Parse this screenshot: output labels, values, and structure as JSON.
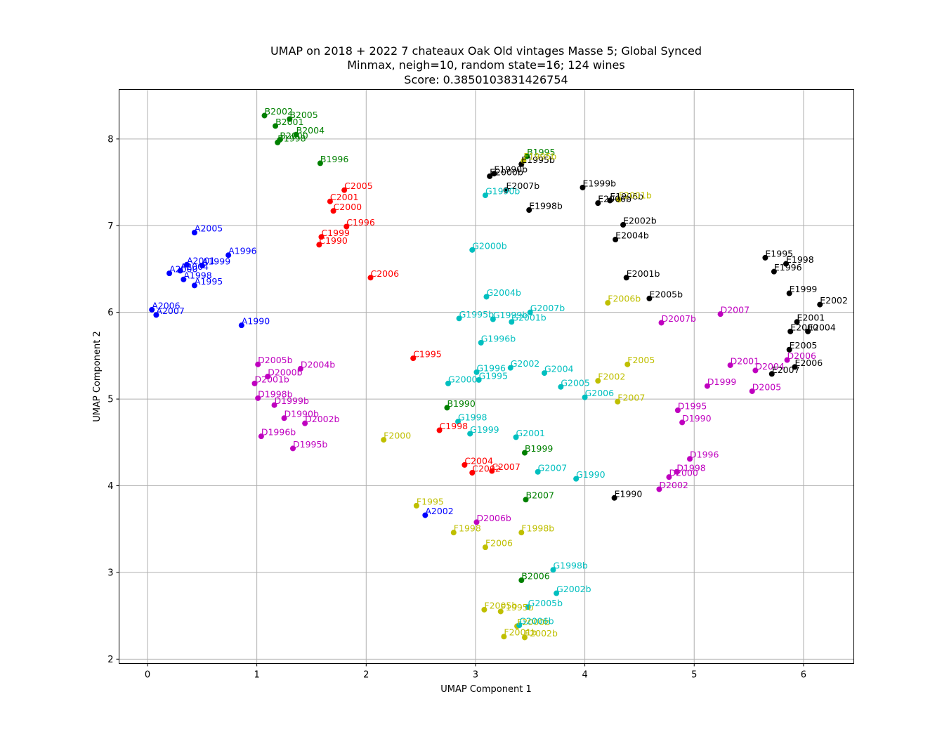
{
  "chart_data": {
    "type": "scatter",
    "title": [
      "UMAP on 2018 + 2022 7 chateaux Oak Old vintages Masse 5; Global Synced",
      "Minmax, neigh=10, random state=16; 124 wines",
      "Score: 0.3850103831426754"
    ],
    "xlabel": "UMAP Component 1",
    "ylabel": "UMAP Component 2",
    "xlim": [
      -0.26,
      6.46
    ],
    "ylim": [
      1.95,
      8.57
    ],
    "xticks": [
      "0",
      "1",
      "2",
      "3",
      "4",
      "5",
      "6"
    ],
    "yticks": [
      "2",
      "3",
      "4",
      "5",
      "6",
      "7",
      "8"
    ],
    "grid": true,
    "colors": {
      "A": "#0000ff",
      "B": "#008000",
      "C": "#ff0000",
      "D": "#bf00bf",
      "E": "#000000",
      "F": "#bfbf00",
      "G": "#00bfbf"
    },
    "points": [
      {
        "label": "A2005",
        "x": 0.43,
        "y": 6.92,
        "g": "A"
      },
      {
        "label": "A1996",
        "x": 0.74,
        "y": 6.66,
        "g": "A"
      },
      {
        "label": "A2001",
        "x": 0.36,
        "y": 6.55,
        "g": "A"
      },
      {
        "label": "A1999",
        "x": 0.5,
        "y": 6.54,
        "g": "A"
      },
      {
        "label": "A2004",
        "x": 0.3,
        "y": 6.48,
        "g": "A"
      },
      {
        "label": "A2000",
        "x": 0.2,
        "y": 6.45,
        "g": "A"
      },
      {
        "label": "A1998",
        "x": 0.33,
        "y": 6.38,
        "g": "A"
      },
      {
        "label": "A1995",
        "x": 0.43,
        "y": 6.31,
        "g": "A"
      },
      {
        "label": "A2006",
        "x": 0.04,
        "y": 6.03,
        "g": "A"
      },
      {
        "label": "A2007",
        "x": 0.08,
        "y": 5.97,
        "g": "A"
      },
      {
        "label": "A1990",
        "x": 0.86,
        "y": 5.85,
        "g": "A"
      },
      {
        "label": "A2002",
        "x": 2.54,
        "y": 3.66,
        "g": "A"
      },
      {
        "label": "B2002",
        "x": 1.07,
        "y": 8.27,
        "g": "B"
      },
      {
        "label": "B2005",
        "x": 1.3,
        "y": 8.23,
        "g": "B"
      },
      {
        "label": "B2001",
        "x": 1.17,
        "y": 8.15,
        "g": "B"
      },
      {
        "label": "B2004",
        "x": 1.36,
        "y": 8.05,
        "g": "B"
      },
      {
        "label": "B2000",
        "x": 1.21,
        "y": 7.99,
        "g": "B"
      },
      {
        "label": "B1998",
        "x": 1.19,
        "y": 7.96,
        "g": "B"
      },
      {
        "label": "B1996",
        "x": 1.58,
        "y": 7.72,
        "g": "B"
      },
      {
        "label": "B1995",
        "x": 3.47,
        "y": 7.8,
        "g": "B"
      },
      {
        "label": "B1990",
        "x": 2.74,
        "y": 4.9,
        "g": "B"
      },
      {
        "label": "B1999",
        "x": 3.45,
        "y": 4.38,
        "g": "B"
      },
      {
        "label": "B2007",
        "x": 3.46,
        "y": 3.84,
        "g": "B"
      },
      {
        "label": "B2006",
        "x": 3.42,
        "y": 2.91,
        "g": "B"
      },
      {
        "label": "C2005",
        "x": 1.8,
        "y": 7.41,
        "g": "C"
      },
      {
        "label": "C2001",
        "x": 1.67,
        "y": 7.28,
        "g": "C"
      },
      {
        "label": "C2000",
        "x": 1.7,
        "y": 7.17,
        "g": "C"
      },
      {
        "label": "C1996",
        "x": 1.82,
        "y": 6.99,
        "g": "C"
      },
      {
        "label": "C1999",
        "x": 1.59,
        "y": 6.87,
        "g": "C"
      },
      {
        "label": "C1990",
        "x": 1.57,
        "y": 6.78,
        "g": "C"
      },
      {
        "label": "C2006",
        "x": 2.04,
        "y": 6.4,
        "g": "C"
      },
      {
        "label": "C1995",
        "x": 2.43,
        "y": 5.47,
        "g": "C"
      },
      {
        "label": "C1998",
        "x": 2.67,
        "y": 4.64,
        "g": "C"
      },
      {
        "label": "C2004",
        "x": 2.9,
        "y": 4.24,
        "g": "C"
      },
      {
        "label": "C2002",
        "x": 2.97,
        "y": 4.15,
        "g": "C"
      },
      {
        "label": "C2007",
        "x": 3.15,
        "y": 4.17,
        "g": "C"
      },
      {
        "label": "D2007",
        "x": 5.24,
        "y": 5.98,
        "g": "D"
      },
      {
        "label": "D2007b",
        "x": 4.7,
        "y": 5.88,
        "g": "D"
      },
      {
        "label": "D2006",
        "x": 5.85,
        "y": 5.45,
        "g": "D"
      },
      {
        "label": "D2001",
        "x": 5.33,
        "y": 5.39,
        "g": "D"
      },
      {
        "label": "D2004",
        "x": 5.56,
        "y": 5.33,
        "g": "D"
      },
      {
        "label": "D1999",
        "x": 5.12,
        "y": 5.15,
        "g": "D"
      },
      {
        "label": "D2005",
        "x": 5.53,
        "y": 5.09,
        "g": "D"
      },
      {
        "label": "D1995",
        "x": 4.85,
        "y": 4.87,
        "g": "D"
      },
      {
        "label": "D1990",
        "x": 4.89,
        "y": 4.73,
        "g": "D"
      },
      {
        "label": "D1996",
        "x": 4.96,
        "y": 4.31,
        "g": "D"
      },
      {
        "label": "D1998",
        "x": 4.84,
        "y": 4.16,
        "g": "D"
      },
      {
        "label": "D2000",
        "x": 4.77,
        "y": 4.1,
        "g": "D"
      },
      {
        "label": "D2002",
        "x": 4.68,
        "y": 3.96,
        "g": "D"
      },
      {
        "label": "D2005b",
        "x": 1.01,
        "y": 5.4,
        "g": "D"
      },
      {
        "label": "D2004b",
        "x": 1.4,
        "y": 5.35,
        "g": "D"
      },
      {
        "label": "D2000b",
        "x": 1.1,
        "y": 5.26,
        "g": "D"
      },
      {
        "label": "D2001b",
        "x": 0.98,
        "y": 5.18,
        "g": "D"
      },
      {
        "label": "D1998b",
        "x": 1.01,
        "y": 5.01,
        "g": "D"
      },
      {
        "label": "D1999b",
        "x": 1.16,
        "y": 4.93,
        "g": "D"
      },
      {
        "label": "D1990b",
        "x": 1.25,
        "y": 4.78,
        "g": "D"
      },
      {
        "label": "D2002b",
        "x": 1.44,
        "y": 4.72,
        "g": "D"
      },
      {
        "label": "D1996b",
        "x": 1.04,
        "y": 4.57,
        "g": "D"
      },
      {
        "label": "D1995b",
        "x": 1.33,
        "y": 4.43,
        "g": "D"
      },
      {
        "label": "D2006b",
        "x": 3.01,
        "y": 3.58,
        "g": "D"
      },
      {
        "label": "E1995b",
        "x": 3.42,
        "y": 7.71,
        "g": "E"
      },
      {
        "label": "E1990b",
        "x": 3.17,
        "y": 7.6,
        "g": "E"
      },
      {
        "label": "E2000b",
        "x": 3.13,
        "y": 7.57,
        "g": "E"
      },
      {
        "label": "E2007b",
        "x": 3.28,
        "y": 7.41,
        "g": "E"
      },
      {
        "label": "E1999b",
        "x": 3.98,
        "y": 7.44,
        "g": "E"
      },
      {
        "label": "E1996b",
        "x": 4.23,
        "y": 7.29,
        "g": "E"
      },
      {
        "label": "E2006b",
        "x": 4.12,
        "y": 7.26,
        "g": "E"
      },
      {
        "label": "E1998b",
        "x": 3.49,
        "y": 7.18,
        "g": "E"
      },
      {
        "label": "E2002b",
        "x": 4.35,
        "y": 7.01,
        "g": "E"
      },
      {
        "label": "E2004b",
        "x": 4.28,
        "y": 6.84,
        "g": "E"
      },
      {
        "label": "E2001b",
        "x": 4.38,
        "y": 6.4,
        "g": "E"
      },
      {
        "label": "E2005b",
        "x": 4.59,
        "y": 6.16,
        "g": "E"
      },
      {
        "label": "E1995",
        "x": 5.65,
        "y": 6.63,
        "g": "E"
      },
      {
        "label": "E1998",
        "x": 5.84,
        "y": 6.56,
        "g": "E"
      },
      {
        "label": "E1996",
        "x": 5.73,
        "y": 6.47,
        "g": "E"
      },
      {
        "label": "E1999",
        "x": 5.87,
        "y": 6.22,
        "g": "E"
      },
      {
        "label": "E2002",
        "x": 6.15,
        "y": 6.09,
        "g": "E"
      },
      {
        "label": "E2001",
        "x": 5.94,
        "y": 5.89,
        "g": "E"
      },
      {
        "label": "E2000",
        "x": 5.88,
        "y": 5.78,
        "g": "E"
      },
      {
        "label": "E2004",
        "x": 6.04,
        "y": 5.78,
        "g": "E"
      },
      {
        "label": "E2005",
        "x": 5.87,
        "y": 5.57,
        "g": "E"
      },
      {
        "label": "E2006",
        "x": 5.92,
        "y": 5.37,
        "g": "E"
      },
      {
        "label": "E2007",
        "x": 5.71,
        "y": 5.29,
        "g": "E"
      },
      {
        "label": "E1990",
        "x": 4.27,
        "y": 3.86,
        "g": "E"
      },
      {
        "label": "F1995b",
        "x": 3.44,
        "y": 7.75,
        "g": "F"
      },
      {
        "label": "F2001b",
        "x": 4.31,
        "y": 7.3,
        "g": "F"
      },
      {
        "label": "F2006b",
        "x": 4.21,
        "y": 6.11,
        "g": "F"
      },
      {
        "label": "F2005",
        "x": 4.39,
        "y": 5.4,
        "g": "F"
      },
      {
        "label": "F2002",
        "x": 4.12,
        "y": 5.21,
        "g": "F"
      },
      {
        "label": "F2007",
        "x": 4.3,
        "y": 4.97,
        "g": "F"
      },
      {
        "label": "F2000",
        "x": 2.16,
        "y": 4.53,
        "g": "F"
      },
      {
        "label": "F1995",
        "x": 2.46,
        "y": 3.77,
        "g": "F"
      },
      {
        "label": "F1998",
        "x": 2.8,
        "y": 3.46,
        "g": "F"
      },
      {
        "label": "F1998b",
        "x": 3.42,
        "y": 3.46,
        "g": "F"
      },
      {
        "label": "F2006",
        "x": 3.09,
        "y": 3.29,
        "g": "F"
      },
      {
        "label": "F2005b",
        "x": 3.08,
        "y": 2.57,
        "g": "F"
      },
      {
        "label": "F1995b",
        "x": 3.23,
        "y": 2.55,
        "g": "F"
      },
      {
        "label": "F2000b",
        "x": 3.38,
        "y": 2.38,
        "g": "F"
      },
      {
        "label": "F2001b",
        "x": 3.26,
        "y": 2.26,
        "g": "F"
      },
      {
        "label": "F2002b",
        "x": 3.45,
        "y": 2.25,
        "g": "F"
      },
      {
        "label": "G1990b",
        "x": 3.09,
        "y": 7.35,
        "g": "G"
      },
      {
        "label": "G2000b",
        "x": 2.97,
        "y": 6.72,
        "g": "G"
      },
      {
        "label": "G2004b",
        "x": 3.1,
        "y": 6.18,
        "g": "G"
      },
      {
        "label": "G2007b",
        "x": 3.5,
        "y": 6.0,
        "g": "G"
      },
      {
        "label": "G1995b",
        "x": 2.85,
        "y": 5.93,
        "g": "G"
      },
      {
        "label": "G1999b",
        "x": 3.16,
        "y": 5.92,
        "g": "G"
      },
      {
        "label": "G2001b",
        "x": 3.33,
        "y": 5.89,
        "g": "G"
      },
      {
        "label": "G1996b",
        "x": 3.05,
        "y": 5.65,
        "g": "G"
      },
      {
        "label": "G2002",
        "x": 3.32,
        "y": 5.36,
        "g": "G"
      },
      {
        "label": "G1996",
        "x": 3.01,
        "y": 5.31,
        "g": "G"
      },
      {
        "label": "G2004",
        "x": 3.63,
        "y": 5.3,
        "g": "G"
      },
      {
        "label": "G1995",
        "x": 3.03,
        "y": 5.22,
        "g": "G"
      },
      {
        "label": "G2000",
        "x": 2.75,
        "y": 5.18,
        "g": "G"
      },
      {
        "label": "G2005",
        "x": 3.78,
        "y": 5.14,
        "g": "G"
      },
      {
        "label": "G2006",
        "x": 4.0,
        "y": 5.02,
        "g": "G"
      },
      {
        "label": "G1998",
        "x": 2.84,
        "y": 4.74,
        "g": "G"
      },
      {
        "label": "G1999",
        "x": 2.95,
        "y": 4.6,
        "g": "G"
      },
      {
        "label": "G2001",
        "x": 3.37,
        "y": 4.56,
        "g": "G"
      },
      {
        "label": "G2007",
        "x": 3.57,
        "y": 4.16,
        "g": "G"
      },
      {
        "label": "G1990",
        "x": 3.92,
        "y": 4.08,
        "g": "G"
      },
      {
        "label": "G1998b",
        "x": 3.71,
        "y": 3.03,
        "g": "G"
      },
      {
        "label": "G2002b",
        "x": 3.74,
        "y": 2.76,
        "g": "G"
      },
      {
        "label": "G2005b",
        "x": 3.48,
        "y": 2.6,
        "g": "G"
      },
      {
        "label": "G2006b",
        "x": 3.4,
        "y": 2.39,
        "g": "G"
      }
    ]
  }
}
